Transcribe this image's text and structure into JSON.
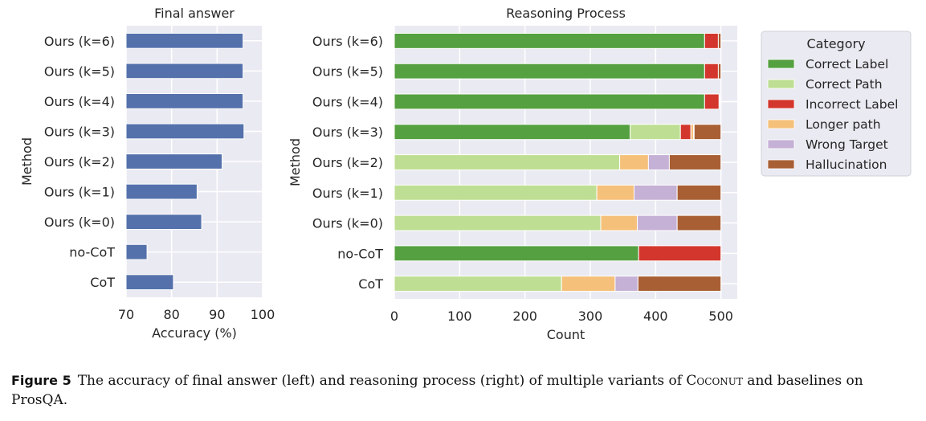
{
  "chart_data": [
    {
      "type": "bar",
      "orientation": "horizontal",
      "title": "Final answer",
      "xlabel": "Accuracy (%)",
      "ylabel": "Method",
      "xlim": [
        70,
        100
      ],
      "xticks": [
        70,
        80,
        90,
        100
      ],
      "grid": true,
      "color": "#5471ab",
      "categories": [
        "Ours (k=6)",
        "Ours (k=5)",
        "Ours (k=4)",
        "Ours (k=3)",
        "Ours (k=2)",
        "Ours (k=1)",
        "Ours (k=0)",
        "no-CoT",
        "CoT"
      ],
      "values": [
        95.7,
        95.7,
        95.7,
        95.9,
        91.1,
        85.6,
        86.6,
        74.6,
        80.4
      ]
    },
    {
      "type": "bar",
      "orientation": "horizontal",
      "stacked": true,
      "title": "Reasoning Process",
      "xlabel": "Count",
      "ylabel": "Method",
      "xlim": [
        0,
        525
      ],
      "xticks": [
        0,
        100,
        200,
        300,
        400,
        500
      ],
      "grid": true,
      "legend": {
        "title": "Category",
        "placement": "outside-right-top"
      },
      "categories": [
        "Ours (k=6)",
        "Ours (k=5)",
        "Ours (k=4)",
        "Ours (k=3)",
        "Ours (k=2)",
        "Ours (k=1)",
        "Ours (k=0)",
        "no-CoT",
        "CoT"
      ],
      "series": [
        {
          "name": "Correct Label",
          "color": "#55a040",
          "values": [
            475,
            475,
            475,
            361,
            0,
            0,
            0,
            374,
            0
          ]
        },
        {
          "name": "Correct Path",
          "color": "#bedf93",
          "values": [
            0,
            0,
            0,
            77,
            345,
            310,
            316,
            0,
            256
          ]
        },
        {
          "name": "Incorrect Label",
          "color": "#d3362c",
          "values": [
            21,
            21,
            22,
            16,
            0,
            0,
            0,
            126,
            0
          ]
        },
        {
          "name": "Longer path",
          "color": "#f5c07a",
          "values": [
            0,
            0,
            0,
            4,
            44,
            57,
            56,
            0,
            82
          ]
        },
        {
          "name": "Wrong Target",
          "color": "#c5b1d5",
          "values": [
            0,
            0,
            0,
            1,
            32,
            66,
            61,
            0,
            35
          ]
        },
        {
          "name": "Hallucination",
          "color": "#a85f34",
          "values": [
            4,
            4,
            0,
            41,
            79,
            67,
            67,
            0,
            127
          ]
        }
      ]
    }
  ],
  "caption": {
    "label": "Figure 5",
    "text_before": "The accuracy of final answer (left) and reasoning process (right) of multiple variants of ",
    "smallcaps": "Coconut",
    "text_after": " and baselines on ProsQA."
  }
}
